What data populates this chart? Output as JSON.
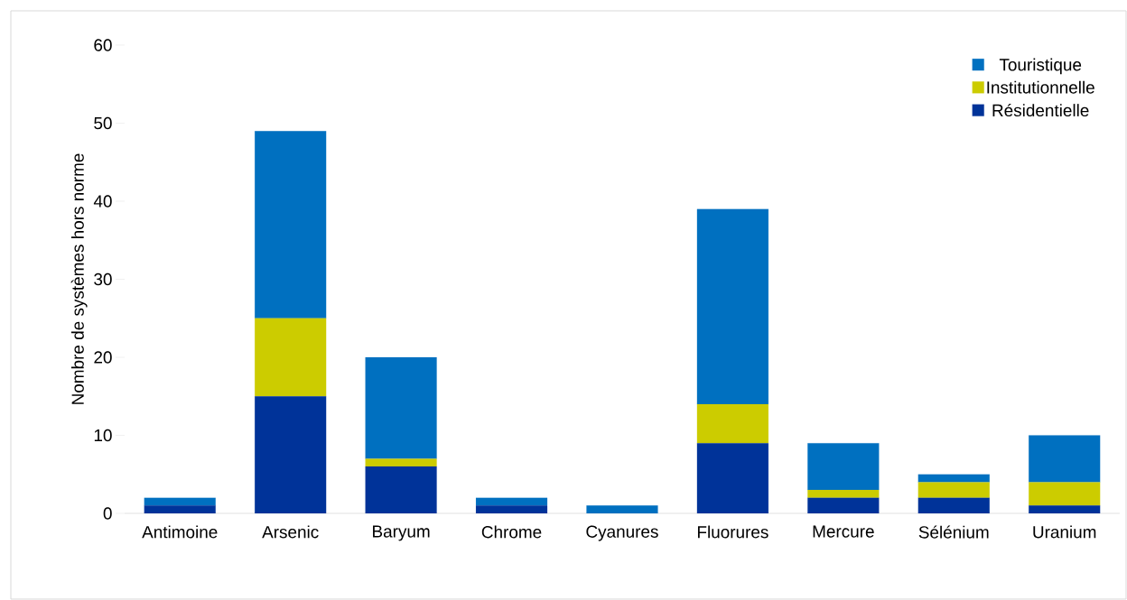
{
  "chart_data": {
    "type": "bar",
    "stacked": true,
    "ylabel": "Nombre de systèmes hors norme",
    "categories": [
      "Antimoine",
      "Arsenic",
      "Baryum",
      "Chrome",
      "Cyanures",
      "Fluorures",
      "Mercure",
      "Sélénium",
      "Uranium"
    ],
    "series": [
      {
        "name": "Résidentielle",
        "color": "#003399",
        "values": [
          1,
          15,
          6,
          1,
          0,
          9,
          2,
          2,
          1
        ]
      },
      {
        "name": "Institutionnelle",
        "color": "#cccc00",
        "values": [
          0,
          10,
          1,
          0,
          0,
          5,
          1,
          2,
          3
        ]
      },
      {
        "name": "Touristique",
        "color": "#0070c0",
        "values": [
          1,
          24,
          13,
          1,
          1,
          25,
          6,
          1,
          6
        ]
      }
    ],
    "ylim": [
      0,
      60
    ],
    "yticks": [
      0,
      10,
      20,
      30,
      40,
      50,
      60
    ],
    "legend": "top right",
    "grid": false
  }
}
